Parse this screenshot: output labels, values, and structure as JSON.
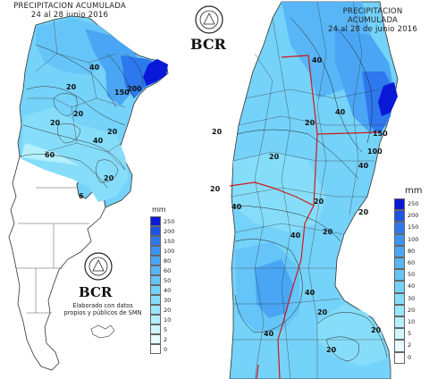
{
  "left_map": {
    "title_line1": "PRECIPITACION ACUMULADA",
    "title_line2": "24 al 28 junio 2016",
    "logo": "BCR",
    "credit_line1": "Elaborado con datos",
    "credit_line2": "propios y públicos de SMN",
    "contour_labels": [
      "40",
      "20",
      "150",
      "200",
      "20",
      "20",
      "20",
      "40",
      "60",
      "20",
      "6"
    ],
    "legend": {
      "unit": "mm",
      "levels": [
        "250",
        "200",
        "150",
        "100",
        "80",
        "60",
        "50",
        "40",
        "30",
        "20",
        "10",
        "5",
        "2",
        "0"
      ],
      "colors": [
        "#0a19d8",
        "#1d54e6",
        "#2e78ee",
        "#3d93f3",
        "#4aa6f5",
        "#58b6f7",
        "#66c5f8",
        "#75d2f9",
        "#86ddfa",
        "#9ae6fb",
        "#b4effc",
        "#d0f6fd",
        "#e8fbfe",
        "#ffffff"
      ]
    }
  },
  "right_map": {
    "title_line1": "PRECIPITACION ACUMULADA",
    "title_line2": "24 al 28 de junio 2016",
    "logo": "BCR",
    "contour_labels": [
      "40",
      "40",
      "20",
      "20",
      "20",
      "150",
      "100",
      "40",
      "20",
      "20",
      "20",
      "40",
      "20",
      "40",
      "40",
      "40",
      "20",
      "20",
      "20"
    ],
    "legend": {
      "unit": "mm",
      "levels": [
        "250",
        "200",
        "150",
        "100",
        "80",
        "60",
        "50",
        "40",
        "30",
        "20",
        "10",
        "5",
        "2",
        "0"
      ],
      "colors": [
        "#0a19d8",
        "#1d54e6",
        "#2e78ee",
        "#3d93f3",
        "#4aa6f5",
        "#58b6f7",
        "#66c5f8",
        "#75d2f9",
        "#86ddfa",
        "#9ae6fb",
        "#b4effc",
        "#d0f6fd",
        "#e8fbfe",
        "#ffffff"
      ]
    }
  }
}
